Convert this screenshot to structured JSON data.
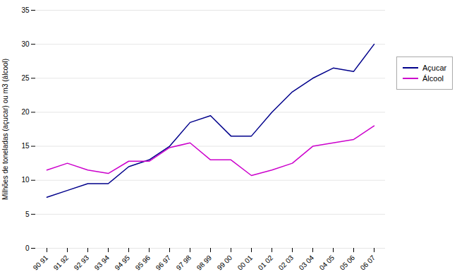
{
  "chart_data": {
    "type": "line",
    "ylabel": "Milhões de toneladas (açucar) ou m3 (álcool)",
    "categories": [
      "90 91",
      "91 92",
      "92 93",
      "93 94",
      "94 95",
      "95 96",
      "96 97",
      "97 98",
      "98 99",
      "99 00",
      "00 01",
      "01 02",
      "02 03",
      "03 04",
      "04 05",
      "05 06",
      "06 07"
    ],
    "series": [
      {
        "name": "Açucar",
        "color": "#00008B",
        "values": [
          7.5,
          8.5,
          9.5,
          9.5,
          12.0,
          13.0,
          15.0,
          18.5,
          19.5,
          16.5,
          16.5,
          20.0,
          23.0,
          25.0,
          26.5,
          26.0,
          30.0
        ]
      },
      {
        "name": "Álcool",
        "color": "#CC00CC",
        "values": [
          11.5,
          12.5,
          11.5,
          11.0,
          12.8,
          12.8,
          14.8,
          15.5,
          13.0,
          13.0,
          10.7,
          11.5,
          12.5,
          15.0,
          15.5,
          16.0,
          18.0
        ]
      }
    ],
    "ylim": [
      0,
      35
    ],
    "yticks": [
      0,
      5,
      10,
      15,
      20,
      25,
      30,
      35
    ],
    "grid": true,
    "legend": "right"
  }
}
